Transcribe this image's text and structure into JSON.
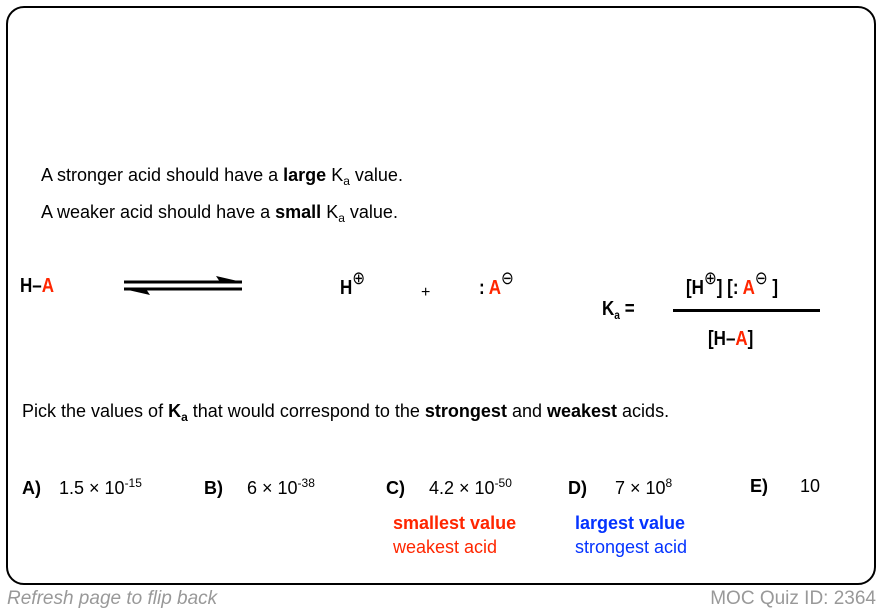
{
  "statements": {
    "line1": {
      "prefix": "A stronger acid should have a ",
      "bold": "large",
      "k": "K",
      "sub": "a",
      "suffix": " value."
    },
    "line2": {
      "prefix": "A weaker acid should have a ",
      "bold": "small",
      "k": "K",
      "sub": "a",
      "suffix": " value."
    }
  },
  "equation": {
    "reactant_h": "H–",
    "reactant_a": "A",
    "product_h": "H",
    "plus_charge": "⊕",
    "plus": "+",
    "lone_pair": ":",
    "product_a": "A",
    "minus_charge": "⊖",
    "ka_k": "K",
    "ka_sub": "a",
    "equals": "=",
    "numerator_open": "[H",
    "numerator_mid": "] [:",
    "numerator_close": "]",
    "denominator_open": "[H–",
    "denominator_a": "A",
    "denominator_close": "]"
  },
  "question": {
    "prefix": "Pick the values of ",
    "k": "K",
    "sub": "a",
    "mid1": " that would correspond to the ",
    "bold1": "strongest",
    "mid2": " and ",
    "bold2": "weakest",
    "suffix": " acids."
  },
  "options": [
    {
      "label": "A)",
      "base": "1.5 × 10",
      "exp": "-15"
    },
    {
      "label": "B)",
      "base": "6 × 10",
      "exp": "-38"
    },
    {
      "label": "C)",
      "base": "4.2 × 10",
      "exp": "-50"
    },
    {
      "label": "D)",
      "base": "7 × 10",
      "exp": "8"
    },
    {
      "label": "E)",
      "base": "10",
      "exp": ""
    }
  ],
  "answers": {
    "smallest": {
      "title": "smallest value",
      "note": "weakest acid",
      "color": "#ff2600"
    },
    "largest": {
      "title": "largest value",
      "note": "strongest acid",
      "color": "#0433ff"
    }
  },
  "footer": {
    "left": "Refresh page to flip back",
    "right": "MOC Quiz ID: 2364"
  }
}
